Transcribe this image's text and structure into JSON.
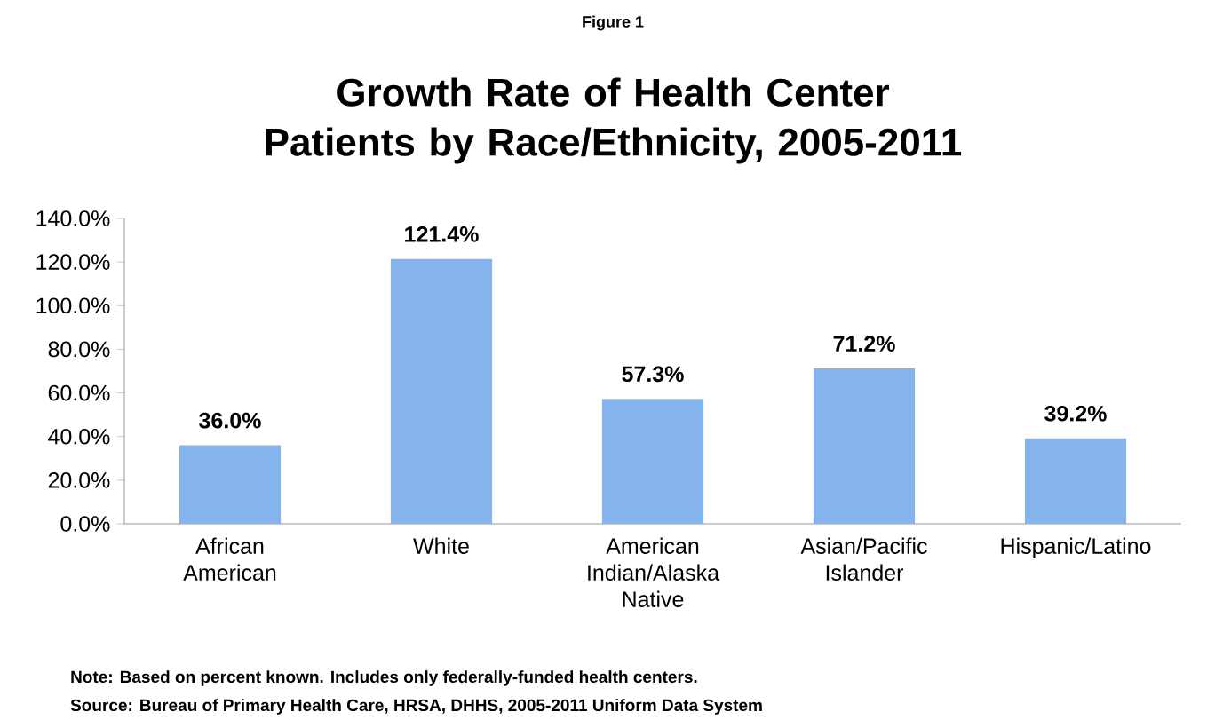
{
  "chart_data": {
    "type": "bar",
    "subtitle": "Figure 1",
    "title": "Growth Rate of Health Center Patients by Race/Ethnicity, 2005-2011",
    "categories": [
      "African American",
      "White",
      "American Indian/Alaska Native",
      "Asian/Pacific Islander",
      "Hispanic/Latino"
    ],
    "values": [
      36.0,
      121.4,
      57.3,
      71.2,
      39.2
    ],
    "value_labels": [
      "36.0%",
      "121.4%",
      "57.3%",
      "71.2%",
      "39.2%"
    ],
    "color": "#85b4ec",
    "ylim": [
      0,
      140
    ],
    "yticks": [
      {
        "value": 0,
        "label": "0.0%"
      },
      {
        "value": 20,
        "label": "20.0%"
      },
      {
        "value": 40,
        "label": "40.0%"
      },
      {
        "value": 60,
        "label": "60.0%"
      },
      {
        "value": 80,
        "label": "80.0%"
      },
      {
        "value": 100,
        "label": "100.0%"
      },
      {
        "value": 120,
        "label": "120.0%"
      },
      {
        "value": 140,
        "label": "140.0%"
      }
    ],
    "annotations": [
      "Note: Based on percent known. Includes only federally-funded health centers.",
      "Source: Bureau of Primary Health Care, HRSA, DHHS, 2005-2011 Uniform Data System"
    ]
  }
}
